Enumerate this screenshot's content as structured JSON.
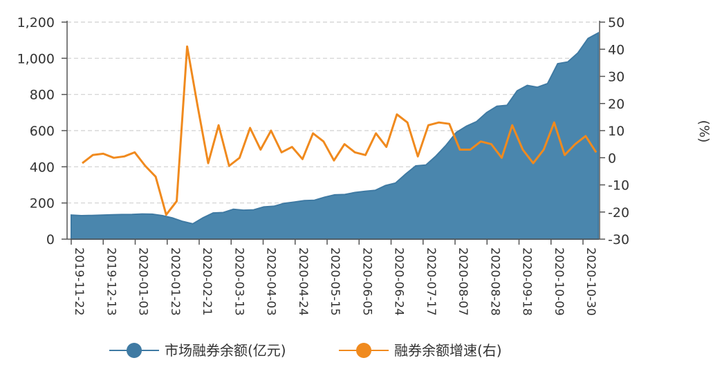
{
  "colors": {
    "area_fill": "#4a86ad",
    "area_stroke": "#3f7aa3",
    "line": "#f08a1e",
    "grid": "#cfcfcf",
    "axis": "#555555"
  },
  "chart_data": {
    "type": "area+line",
    "xlabels": [
      "2019-11-22",
      "2019-12-13",
      "2020-01-03",
      "2020-01-23",
      "2020-02-21",
      "2020-03-13",
      "2020-04-03",
      "2020-04-24",
      "2020-05-15",
      "2020-06-05",
      "2020-06-24",
      "2020-07-17",
      "2020-08-07",
      "2020-08-28",
      "2020-09-18",
      "2020-10-09",
      "2020-10-30"
    ],
    "ylabel_right": "(%)",
    "y_left": {
      "lim": [
        0,
        1200
      ],
      "ticks": [
        0,
        200,
        400,
        600,
        800,
        1000,
        1200
      ],
      "tick_labels": [
        "0",
        "200",
        "400",
        "600",
        "800",
        "1,000",
        "1,200"
      ]
    },
    "y_right": {
      "lim": [
        -30,
        50
      ],
      "ticks": [
        -30,
        -20,
        -10,
        0,
        10,
        20,
        30,
        40,
        50
      ],
      "tick_labels": [
        "-30",
        "-20",
        "-10",
        "0",
        "10",
        "20",
        "30",
        "40",
        "50"
      ]
    },
    "grid": true,
    "legend_position": "bottom",
    "series": [
      {
        "name": "市场融券余额(亿元)",
        "axis": "left",
        "values": [
          133,
          130,
          131,
          133,
          135,
          136,
          137,
          139,
          138,
          130,
          117,
          98,
          85,
          118,
          145,
          147,
          165,
          160,
          162,
          178,
          182,
          198,
          205,
          213,
          215,
          232,
          245,
          247,
          258,
          265,
          270,
          296,
          310,
          360,
          405,
          410,
          460,
          520,
          590,
          625,
          650,
          700,
          735,
          740,
          820,
          850,
          840,
          860,
          970,
          980,
          1030,
          1110,
          1140
        ]
      },
      {
        "name": "融券余额增速(右)",
        "axis": "right",
        "values": [
          -2,
          1,
          1.5,
          0,
          0.5,
          2,
          -3,
          -7,
          -21,
          -16,
          41,
          19,
          -2,
          12,
          -3,
          0,
          11,
          3,
          10,
          2,
          4,
          -0.5,
          9,
          6,
          -1,
          5,
          2,
          1,
          9,
          4,
          16,
          13,
          0.5,
          12,
          13,
          12.5,
          3,
          3,
          6,
          5,
          0,
          12,
          3,
          -2,
          3,
          13,
          1,
          5,
          8,
          2
        ]
      }
    ]
  }
}
